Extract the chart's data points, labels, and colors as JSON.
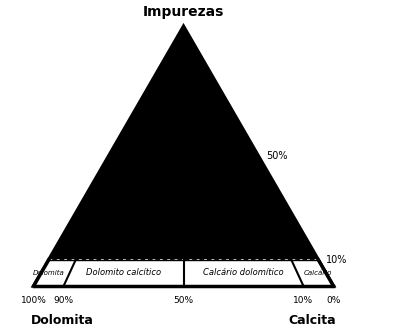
{
  "title": "Impurezas",
  "left_label": "Dolomita",
  "right_label": "Calcita",
  "triangle_fill": "#000000",
  "triangle_stroke": "#000000",
  "bottom_band_fill": "#ffffff",
  "label_50": "50%",
  "label_10_right": "10%",
  "bottom_ticks": [
    [
      "100%",
      0.0
    ],
    [
      "90%",
      0.1
    ],
    [
      "50%",
      0.5
    ],
    [
      "10%",
      0.9
    ],
    [
      "0%",
      1.0
    ]
  ],
  "zone_labels": [
    "Dolomita",
    "Dolomito calcítico",
    "Calcário dolomítico",
    "Calcário"
  ],
  "font_color": "#000000",
  "dotted_line_color": "#ffffff",
  "separator_color": "#000000",
  "xlim": [
    -0.02,
    1.13
  ],
  "ylim": [
    -0.145,
    0.945
  ]
}
